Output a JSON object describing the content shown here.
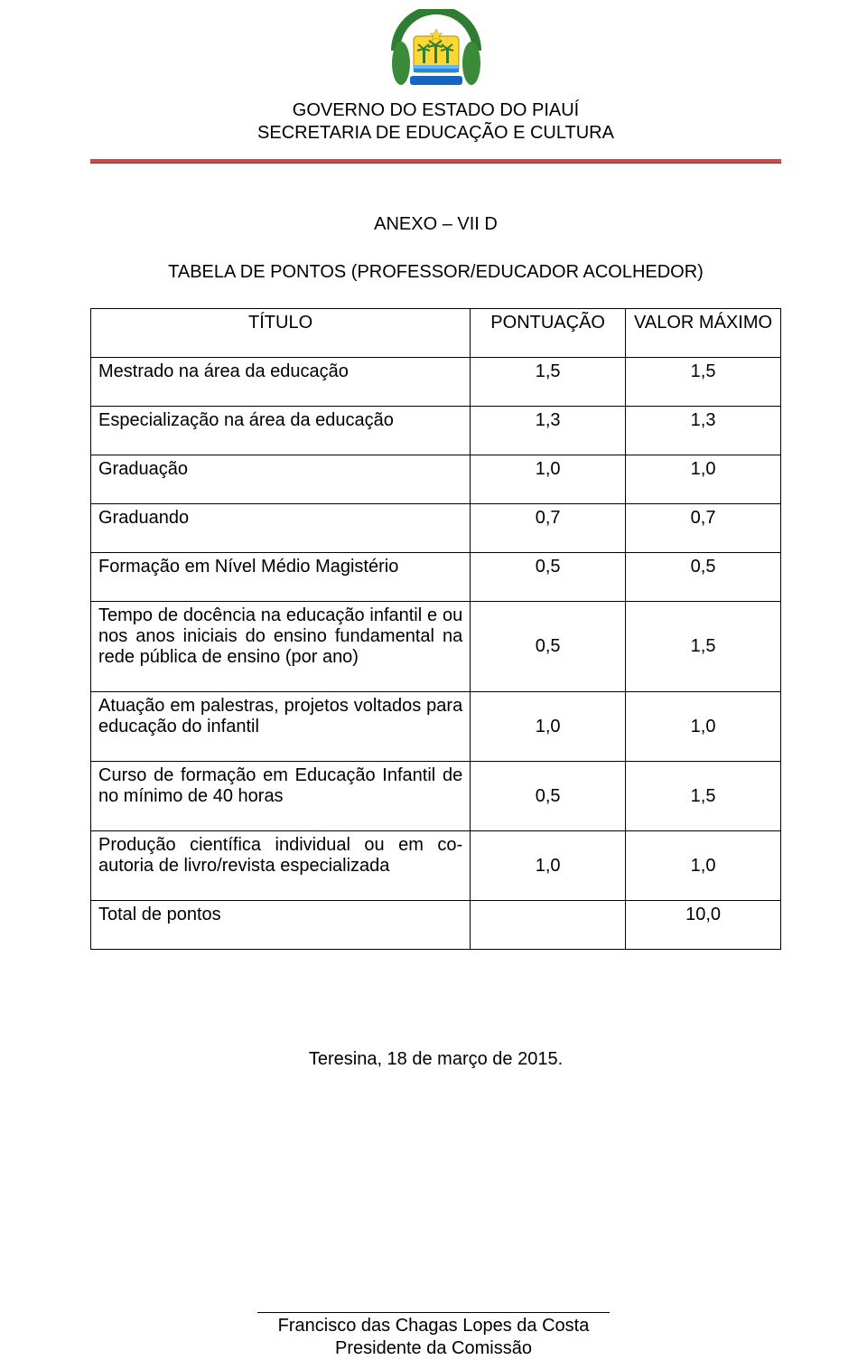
{
  "header": {
    "line1": "GOVERNO DO ESTADO DO PIAUÍ",
    "line2": "SECRETARIA DE EDUCAÇÃO E CULTURA"
  },
  "annex": "ANEXO – VII D",
  "subtitle": "TABELA DE PONTOS (PROFESSOR/EDUCADOR ACOLHEDOR)",
  "table": {
    "columns": [
      "TÍTULO",
      "PONTUAÇÃO",
      "VALOR MÁXIMO"
    ],
    "rows": [
      {
        "title": "Mestrado na área da educação",
        "pts": "1,5",
        "max": "1,5"
      },
      {
        "title": "Especialização na área da educação",
        "pts": "1,3",
        "max": "1,3"
      },
      {
        "title": "Graduação",
        "pts": "1,0",
        "max": "1,0"
      },
      {
        "title": "Graduando",
        "pts": "0,7",
        "max": "0,7"
      },
      {
        "title": "Formação em Nível Médio Magistério",
        "pts": "0,5",
        "max": "0,5"
      },
      {
        "title": "Tempo de docência na educação infantil e ou nos anos iniciais do ensino fundamental na rede pública de ensino (por ano)",
        "pts": "0,5",
        "max": "1,5"
      },
      {
        "title": "Atuação em palestras, projetos voltados para educação do infantil",
        "pts": "1,0",
        "max": "1,0"
      },
      {
        "title": "Curso de formação em Educação Infantil de no mínimo de 40 horas",
        "pts": "0,5",
        "max": "1,5"
      },
      {
        "title": "Produção científica individual ou em co-autoria de livro/revista especializada",
        "pts": "1,0",
        "max": "1,0"
      }
    ],
    "total_label": "Total de pontos",
    "total_value": "10,0"
  },
  "date": "Teresina, 18 de março de 2015.",
  "signature": {
    "name": "Francisco das Chagas Lopes da Costa",
    "role": "Presidente da Comissão"
  },
  "colors": {
    "rule": "#c0504d",
    "crest_arc": "#2e7d32",
    "crest_flag_bg": "#fdd835",
    "crest_flag_stripe": "#1e88e5",
    "crest_palm": "#2e7d32",
    "crest_banner": "#1565c0"
  }
}
